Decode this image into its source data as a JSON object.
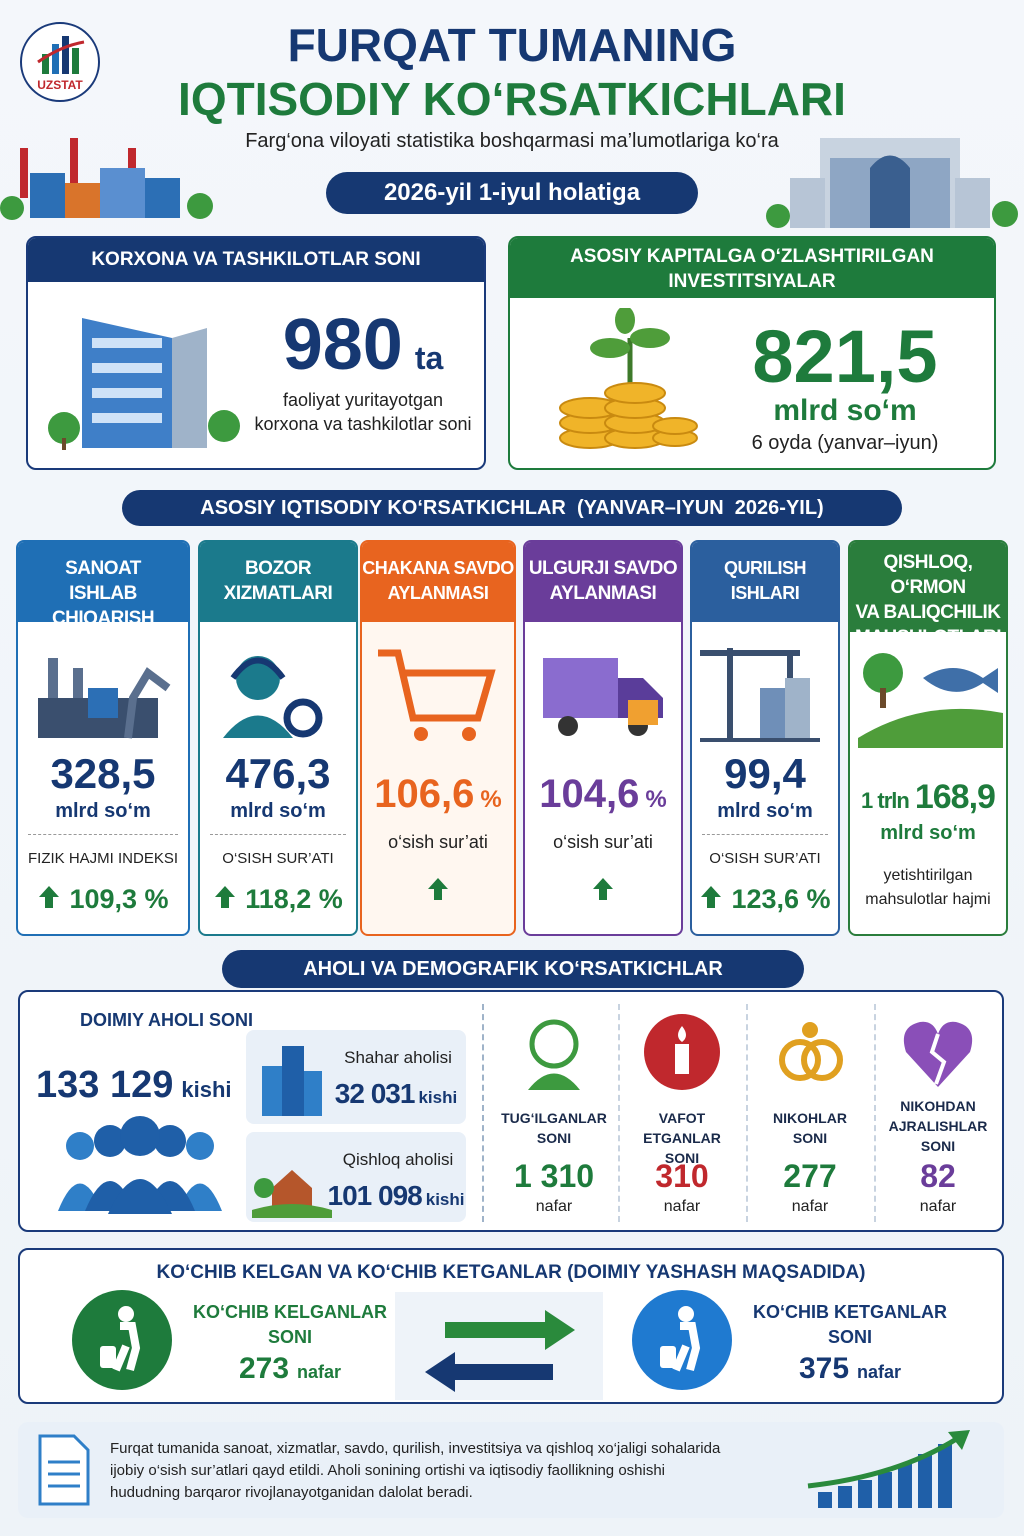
{
  "header": {
    "logo": "UZSTAT",
    "title_line1": "FURQAT TUMANING",
    "title_line2": "IQTISODIY KO‘RSATKICHLARI",
    "subtitle": "Farg‘ona viloyati statistika boshqarmasi ma’lumotlariga ko‘ra",
    "date": "2026-yil 1-iyul holatiga"
  },
  "enterprises": {
    "title": "KORXONA VA TASHKILOTLAR SONI",
    "value": "980",
    "unit": "ta",
    "description": [
      "faoliyat yuritayotgan",
      "korxona va tashkilotlar soni"
    ]
  },
  "investments": {
    "title": [
      "ASOSIY KAPITALGA O‘ZLASHTIRILGAN",
      "INVESTITSIYALAR"
    ],
    "value": "821,5",
    "unit": "mlrd so‘m",
    "period": "6 oyda (yanvar–iyun)"
  },
  "indicators": {
    "title": "ASOSIY IQTISODIY KO‘RSATKICHLAR  (YANVAR–IYUN  2026-YIL)",
    "items": [
      {
        "title": [
          "SANOAT",
          "ISHLAB CHIQARISH"
        ],
        "value": "328,5",
        "unit": "mlrd so‘m",
        "metric": [
          "FIZIK HAJMI INDEKSI"
        ],
        "change": "109,3 %"
      },
      {
        "title": [
          "BOZOR",
          "XIZMATLARI"
        ],
        "value": "476,3",
        "unit": "mlrd so‘m",
        "metric": [
          "O‘SISH SUR’ATI"
        ],
        "change": "118,2 %"
      },
      {
        "title": [
          "CHAKANA SAVDO",
          "AYLANMASI"
        ],
        "value": "106,6",
        "unit": "%",
        "metric": [
          "o‘sish sur’ati"
        ]
      },
      {
        "title": [
          "ULGURJI SAVDO",
          "AYLANMASI"
        ],
        "value": "104,6",
        "unit": "%",
        "metric": [
          "o‘sish sur’ati"
        ]
      },
      {
        "title": [
          "QURILISH",
          "ISHLARI"
        ],
        "value": "99,4",
        "unit": "mlrd so‘m",
        "metric": [
          "O‘SISH SUR’ATI"
        ],
        "change": "123,6 %"
      },
      {
        "title": [
          "QISHLOQ, O‘RMON",
          "VA BALIQCHILIK",
          "MAHSULOTLARI"
        ],
        "value_prefix": "1 trln",
        "value": "168,9",
        "unit": "mlrd so‘m",
        "metric": [
          "yetishtirilgan",
          "mahsulotlar hajmi"
        ]
      }
    ]
  },
  "demographics": {
    "title": "AHOLI VA DEMOGRAFIK KO‘RSATKICHLAR",
    "population_label": "DOIMIY AHOLI SONI",
    "population": "133 129",
    "population_unit": "kishi",
    "urban": {
      "label": "Shahar aholisi",
      "value": "32 031",
      "unit": "kishi"
    },
    "rural": {
      "label": "Qishloq aholisi",
      "value": "101 098",
      "unit": "kishi"
    },
    "events": [
      {
        "label": [
          "TUG‘ILGANLAR",
          "SONI"
        ],
        "value": "1 310",
        "unit": "nafar"
      },
      {
        "label": [
          "VAFOT ETGANLAR",
          "SONI"
        ],
        "value": "310",
        "unit": "nafar"
      },
      {
        "label": [
          "NIKOHLAR",
          "SONI"
        ],
        "value": "277",
        "unit": "nafar"
      },
      {
        "label": [
          "NIKOHDAN",
          "AJRALISHLAR",
          "SONI"
        ],
        "value": "82",
        "unit": "nafar"
      }
    ]
  },
  "migration": {
    "title": "KO‘CHIB KELGAN VA KO‘CHIB KETGANLAR (DOIMIY YASHASH MAQSADIDA)",
    "arrivals": {
      "label": [
        "KO‘CHIB KELGANLAR",
        "SONI"
      ],
      "value": "273",
      "unit": "nafar"
    },
    "departures": {
      "label": [
        "KO‘CHIB KETGANLAR",
        "SONI"
      ],
      "value": "375",
      "unit": "nafar"
    }
  },
  "footer": {
    "text": [
      "Furqat tumanida sanoat, xizmatlar, savdo, qurilish, investitsiya va qishloq xo‘jaligi sohalarida",
      "ijobiy o‘sish sur’atlari qayd etildi. Aholi sonining ortishi va iqtisodiy faollikning oshishi",
      "hududning barqaror rivojlanayotganidan dalolat beradi."
    ]
  }
}
